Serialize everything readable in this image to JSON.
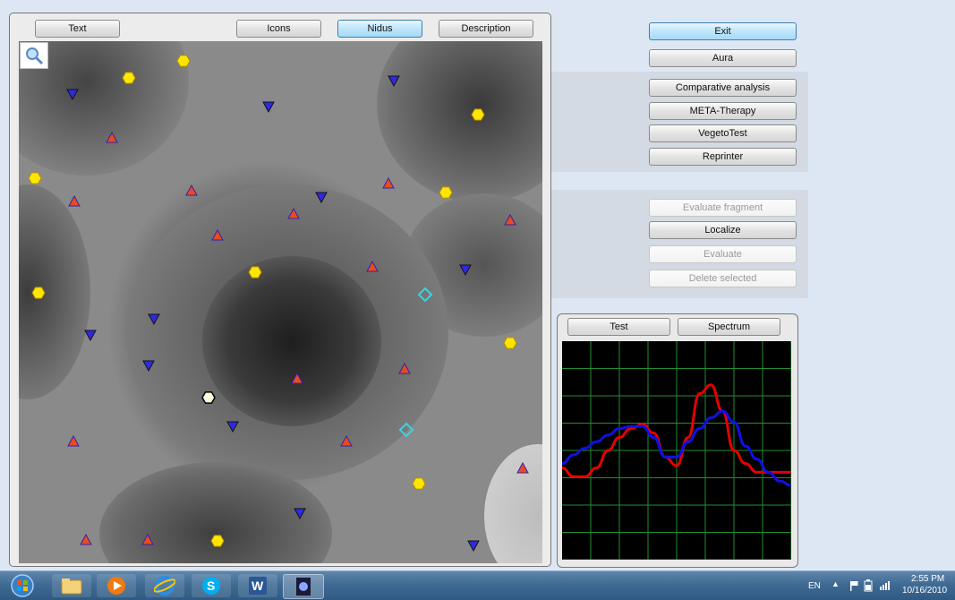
{
  "top_tabs": {
    "text": "Text",
    "icons": "Icons",
    "nidus": "Nidus",
    "description": "Description"
  },
  "right_buttons": {
    "exit": "Exit",
    "aura": "Aura",
    "comparative": "Comparative analysis",
    "meta": "META-Therapy",
    "vegeto": "VegetoTest",
    "reprinter": "Reprinter",
    "evaluate_fragment": "Evaluate fragment",
    "localize": "Localize",
    "evaluate": "Evaluate",
    "delete_selected": "Delete selected"
  },
  "spectrum_panel": {
    "test": "Test",
    "spectrum": "Spectrum"
  },
  "markers": {
    "hexagon_color": "#ffe600",
    "triangle_up_color": "#e74c1c",
    "triangle_down_color": "#2e2ae0",
    "diamond_color": "#40d0e0"
  },
  "chart_data": {
    "type": "line",
    "grid": true,
    "background": "#000000",
    "grid_color": "#1f8f2f",
    "x": [
      0,
      5,
      10,
      15,
      20,
      25,
      30,
      35,
      40,
      45,
      50,
      55,
      60,
      65,
      70,
      75,
      80,
      85,
      90,
      95,
      100
    ],
    "series": [
      {
        "color": "#e60000",
        "values": [
          42,
          38,
          38,
          42,
          50,
          56,
          60,
          62,
          58,
          47,
          43,
          56,
          76,
          80,
          68,
          50,
          44,
          40,
          40,
          40,
          40
        ]
      },
      {
        "color": "#1010e6",
        "values": [
          44,
          48,
          51,
          54,
          57,
          60,
          61,
          61,
          56,
          47,
          47,
          54,
          60,
          65,
          68,
          63,
          52,
          46,
          40,
          36,
          34
        ]
      }
    ],
    "ylim": [
      0,
      100
    ]
  },
  "taskbar": {
    "lang": "EN",
    "time": "2:55 PM",
    "date": "10/16/2010",
    "apps": [
      "start-orb",
      "explorer-icon",
      "media-player-icon",
      "internet-explorer-icon",
      "skype-icon",
      "word-icon",
      "app-icon"
    ]
  }
}
